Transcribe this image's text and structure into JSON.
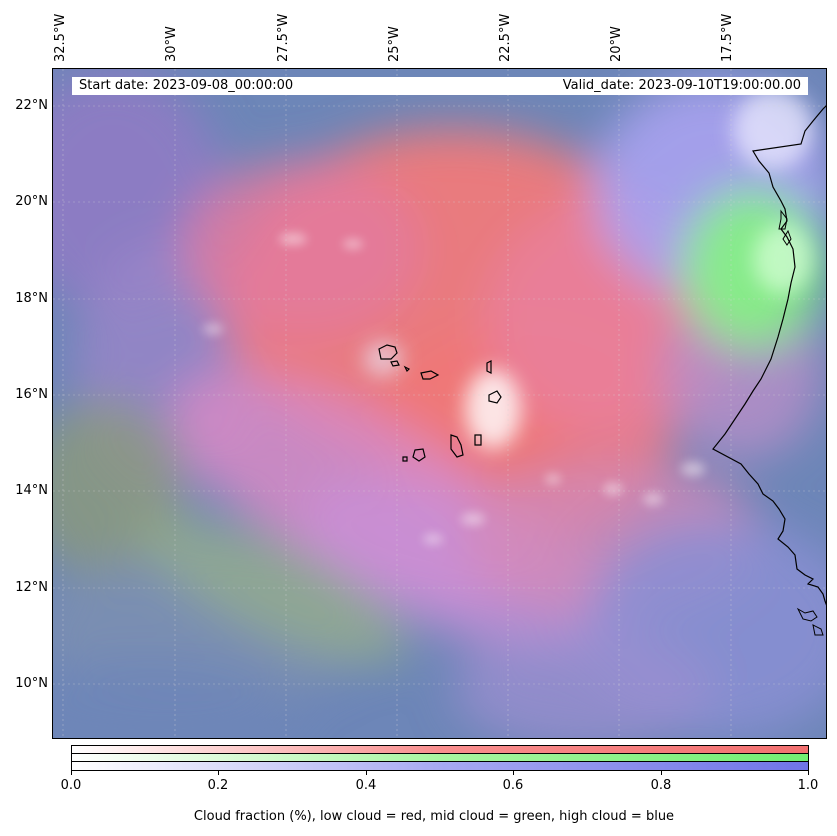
{
  "map": {
    "region_description_hidden": false,
    "start_date_label": "Start date: 2023-09-08_00:00:00",
    "valid_date_label": "Valid_date: 2023-09-10T19:00:00.00",
    "longitude_labels": [
      "32.5°W",
      "30°W",
      "27.5°W",
      "25°W",
      "22.5°W",
      "20°W",
      "17.5°W"
    ],
    "latitude_labels": [
      "22°N",
      "20°N",
      "18°N",
      "16°N",
      "14°N",
      "12°N",
      "10°N"
    ],
    "channel_colors": {
      "low_cloud": "#f27070",
      "mid_cloud": "#72ee72",
      "high_cloud": "#7074e8",
      "background": "#6a83b8"
    }
  },
  "colorbar": {
    "ticks": [
      "0.0",
      "0.2",
      "0.4",
      "0.6",
      "0.8",
      "1.0"
    ],
    "caption": "Cloud fraction (%), low cloud = red, mid cloud = green, high cloud = blue"
  }
}
